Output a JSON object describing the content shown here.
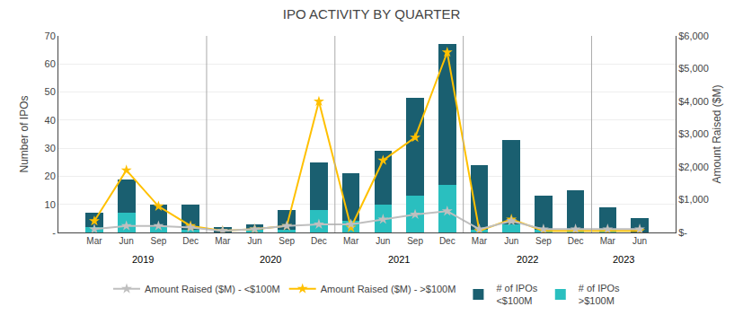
{
  "chart_data": {
    "type": "bar",
    "title": "IPO ACTIVITY BY QUARTER",
    "stacked": true,
    "grid": true,
    "legend": "bottom",
    "categories": [
      "Mar",
      "Jun",
      "Sep",
      "Dec",
      "Mar",
      "Jun",
      "Sep",
      "Dec",
      "Mar",
      "Jun",
      "Sep",
      "Dec",
      "Mar",
      "Jun",
      "Sep",
      "Dec",
      "Mar",
      "Jun"
    ],
    "annotations": [
      {
        "text": "2019",
        "start": 0,
        "end": 3
      },
      {
        "text": "2020",
        "start": 4,
        "end": 7
      },
      {
        "text": "2021",
        "start": 8,
        "end": 11
      },
      {
        "text": "2022",
        "start": 12,
        "end": 15
      },
      {
        "text": "2023",
        "start": 16,
        "end": 17
      }
    ],
    "ylabel": "Number of IPOs",
    "y2label": "Amount Raised ($M)",
    "ylim": [
      0,
      70
    ],
    "yticks": [
      {
        "value": 0,
        "label": "-"
      },
      10,
      20,
      30,
      40,
      50,
      60,
      70
    ],
    "y2lim": [
      0,
      6000
    ],
    "y2ticks": [
      {
        "value": 0,
        "label": "$-"
      },
      {
        "value": 1000,
        "label": "$1,000"
      },
      {
        "value": 2000,
        "label": "$2,000"
      },
      {
        "value": 3000,
        "label": "$3,000"
      },
      {
        "value": 4000,
        "label": "$4,000"
      },
      {
        "value": 5000,
        "label": "$5,000"
      },
      {
        "value": 6000,
        "label": "$6,000"
      }
    ],
    "series": [
      {
        "name": "# of IPOs\n>$100M",
        "type": "bar",
        "color": "#2ABFBF",
        "values": [
          2,
          7,
          2,
          1,
          0,
          1,
          1,
          8,
          4,
          10,
          13,
          17,
          1,
          3,
          1,
          1,
          1,
          0
        ]
      },
      {
        "name": "# of IPOs\n<$100M",
        "type": "bar",
        "color": "#1A5F70",
        "values": [
          5,
          12,
          8,
          9,
          2,
          2,
          7,
          17,
          17,
          19,
          35,
          50,
          23,
          30,
          12,
          14,
          8,
          5
        ]
      },
      {
        "name": "Amount Raised ($M) - >$100M",
        "type": "line",
        "axis": "y2",
        "color": "#FFC000",
        "marker": "star",
        "values": [
          350,
          1900,
          800,
          200,
          50,
          100,
          200,
          4000,
          150,
          2200,
          2900,
          5500,
          50,
          400,
          50,
          50,
          50,
          50
        ]
      },
      {
        "name": "Amount Raised ($M) - <$100M",
        "type": "line",
        "axis": "y2",
        "color": "#BFBFBF",
        "marker": "star",
        "values": [
          100,
          200,
          200,
          150,
          50,
          100,
          200,
          250,
          250,
          400,
          550,
          650,
          100,
          350,
          100,
          100,
          100,
          100
        ]
      }
    ]
  }
}
